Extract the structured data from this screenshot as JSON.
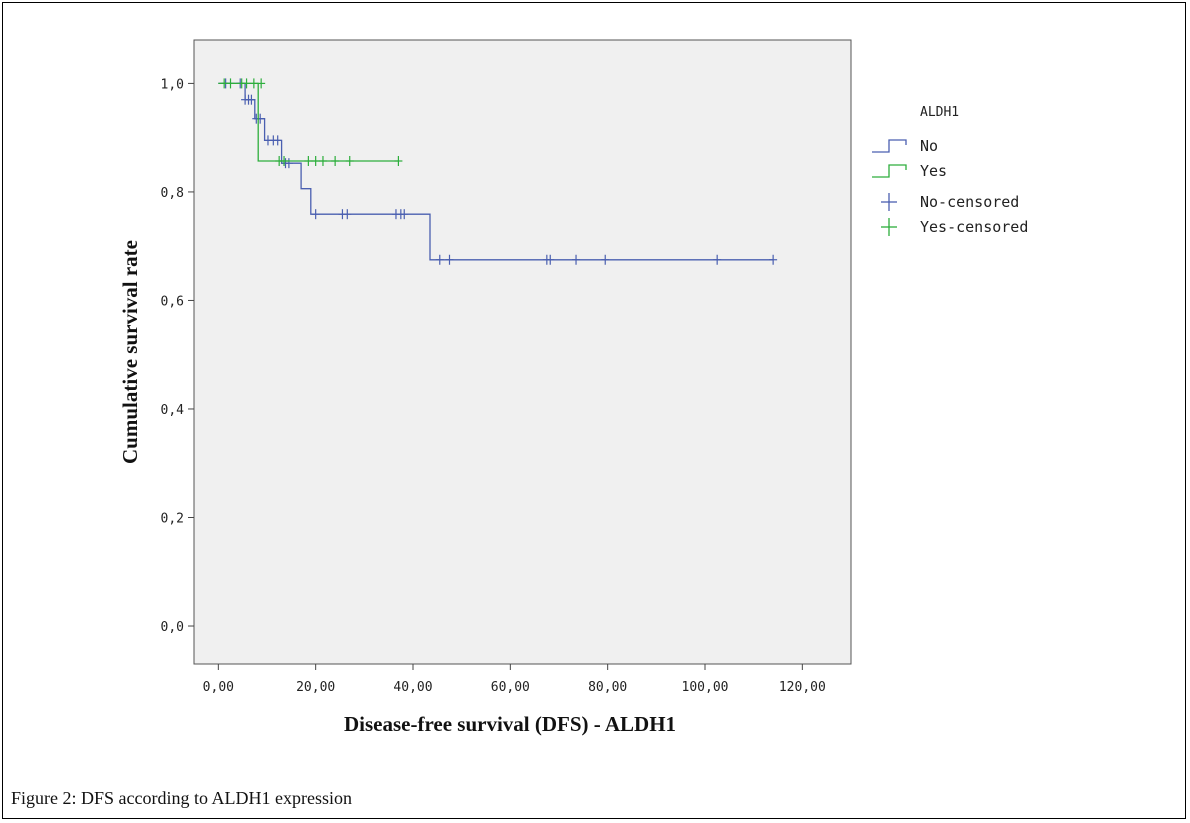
{
  "caption": "Figure 2: DFS according to ALDH1 expression",
  "chart_data": {
    "type": "line",
    "subtype": "kaplan-meier step",
    "xlabel": "Disease-free survival (DFS) - ALDH1",
    "ylabel": "Cumulative survival rate",
    "xlim": [
      -5,
      130
    ],
    "ylim": [
      -0.07,
      1.08
    ],
    "x_ticks": [
      0,
      20,
      40,
      60,
      80,
      100,
      120
    ],
    "x_tick_labels": [
      "0,00",
      "20,00",
      "40,00",
      "60,00",
      "80,00",
      "100,00",
      "120,00"
    ],
    "y_ticks": [
      0,
      0.2,
      0.4,
      0.6,
      0.8,
      1.0
    ],
    "y_tick_labels": [
      "0,0",
      "0,2",
      "0,4",
      "0,6",
      "0,8",
      "1,0"
    ],
    "grid": false,
    "background": "#f0f0f0",
    "legend": {
      "title": "ALDH1",
      "position": "right",
      "entries": [
        "No",
        "Yes",
        "No-censored",
        "Yes-censored"
      ]
    },
    "series": [
      {
        "name": "No",
        "color": "#4a5fb0",
        "steps": [
          [
            0,
            1.0
          ],
          [
            5.5,
            0.97
          ],
          [
            7.5,
            0.935
          ],
          [
            9.5,
            0.895
          ],
          [
            13,
            0.853
          ],
          [
            17,
            0.806
          ],
          [
            19,
            0.759
          ],
          [
            43.5,
            0.675
          ],
          [
            114,
            0.675
          ]
        ],
        "censored": [
          [
            1.5,
            1.0
          ],
          [
            4.5,
            1.0
          ],
          [
            5.5,
            0.97
          ],
          [
            6.2,
            0.97
          ],
          [
            6.8,
            0.97
          ],
          [
            7.8,
            0.935
          ],
          [
            8.6,
            0.935
          ],
          [
            10.2,
            0.895
          ],
          [
            11.3,
            0.895
          ],
          [
            12.2,
            0.895
          ],
          [
            13.8,
            0.853
          ],
          [
            14.5,
            0.853
          ],
          [
            20,
            0.759
          ],
          [
            25.5,
            0.759
          ],
          [
            26.5,
            0.759
          ],
          [
            36.5,
            0.759
          ],
          [
            37.5,
            0.759
          ],
          [
            38.2,
            0.759
          ],
          [
            45.5,
            0.675
          ],
          [
            47.5,
            0.675
          ],
          [
            67.5,
            0.675
          ],
          [
            68.2,
            0.675
          ],
          [
            73.5,
            0.675
          ],
          [
            79.5,
            0.675
          ],
          [
            102.5,
            0.675
          ],
          [
            114,
            0.675
          ]
        ]
      },
      {
        "name": "Yes",
        "color": "#2dae3c",
        "steps": [
          [
            0,
            1.0
          ],
          [
            8.2,
            0.857
          ],
          [
            37,
            0.857
          ]
        ],
        "censored": [
          [
            1.2,
            1.0
          ],
          [
            2.5,
            1.0
          ],
          [
            4.8,
            1.0
          ],
          [
            5.8,
            1.0
          ],
          [
            7.3,
            1.0
          ],
          [
            8.8,
            1.0
          ],
          [
            12.5,
            0.857
          ],
          [
            13.5,
            0.857
          ],
          [
            18.5,
            0.857
          ],
          [
            20,
            0.857
          ],
          [
            21.5,
            0.857
          ],
          [
            24,
            0.857
          ],
          [
            27,
            0.857
          ],
          [
            37,
            0.857
          ]
        ]
      }
    ]
  }
}
